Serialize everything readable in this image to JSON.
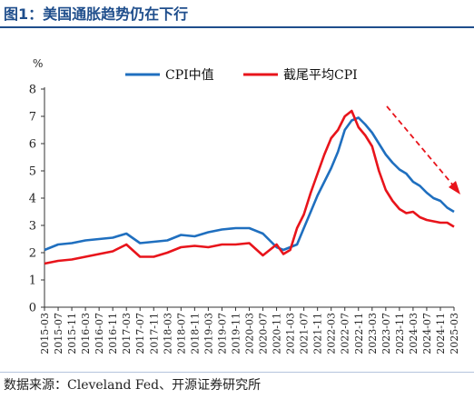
{
  "title": "图1：美国通胀趋势仍在下行",
  "source": "数据来源：Cleveland Fed、开源证券研究所",
  "colors": {
    "title": "#1f4e8c",
    "cpi": "#1f6fbf",
    "trimmed": "#e8141b",
    "arrow": "#e8141b"
  },
  "chart_data": {
    "type": "line",
    "ylabel": "%",
    "ylim": [
      0,
      8
    ],
    "yticks": [
      0,
      1,
      2,
      3,
      4,
      5,
      6,
      7,
      8
    ],
    "xlim": [
      "2015-03",
      "2025-03"
    ],
    "xticks": [
      "2015-03",
      "2015-07",
      "2015-11",
      "2016-03",
      "2016-07",
      "2016-11",
      "2017-03",
      "2017-07",
      "2017-11",
      "2018-03",
      "2018-07",
      "2018-11",
      "2019-03",
      "2019-07",
      "2019-11",
      "2020-03",
      "2020-07",
      "2020-11",
      "2021-03",
      "2021-07",
      "2021-11",
      "2022-03",
      "2022-07",
      "2022-11",
      "2023-03",
      "2023-07",
      "2023-11",
      "2024-03",
      "2024-07",
      "2024-11",
      "2025-03"
    ],
    "grid": false,
    "legend": "top-center",
    "annotation": "downward-trend-arrow",
    "series": [
      {
        "name": "CPI中值",
        "x": [
          "2015-03",
          "2015-07",
          "2015-11",
          "2016-03",
          "2016-07",
          "2016-11",
          "2017-03",
          "2017-07",
          "2017-11",
          "2018-03",
          "2018-07",
          "2018-11",
          "2019-03",
          "2019-07",
          "2019-11",
          "2020-03",
          "2020-07",
          "2020-11",
          "2021-01",
          "2021-03",
          "2021-05",
          "2021-07",
          "2021-09",
          "2021-11",
          "2022-01",
          "2022-03",
          "2022-05",
          "2022-07",
          "2022-09",
          "2022-11",
          "2023-01",
          "2023-03",
          "2023-05",
          "2023-07",
          "2023-09",
          "2023-11",
          "2024-01",
          "2024-03",
          "2024-05",
          "2024-07",
          "2024-09",
          "2024-11",
          "2025-01",
          "2025-03"
        ],
        "y": [
          2.1,
          2.3,
          2.35,
          2.45,
          2.5,
          2.55,
          2.7,
          2.35,
          2.4,
          2.45,
          2.65,
          2.6,
          2.75,
          2.85,
          2.9,
          2.9,
          2.7,
          2.2,
          2.1,
          2.2,
          2.3,
          2.9,
          3.5,
          4.1,
          4.6,
          5.1,
          5.7,
          6.5,
          6.85,
          6.95,
          6.7,
          6.4,
          6.0,
          5.6,
          5.3,
          5.05,
          4.9,
          4.6,
          4.45,
          4.2,
          4.0,
          3.9,
          3.65,
          3.5
        ]
      },
      {
        "name": "截尾平均CPI",
        "x": [
          "2015-03",
          "2015-07",
          "2015-11",
          "2016-03",
          "2016-07",
          "2016-11",
          "2017-03",
          "2017-07",
          "2017-11",
          "2018-03",
          "2018-07",
          "2018-11",
          "2019-03",
          "2019-07",
          "2019-11",
          "2020-03",
          "2020-07",
          "2020-11",
          "2021-01",
          "2021-03",
          "2021-05",
          "2021-07",
          "2021-09",
          "2021-11",
          "2022-01",
          "2022-03",
          "2022-05",
          "2022-07",
          "2022-09",
          "2022-11",
          "2023-01",
          "2023-03",
          "2023-05",
          "2023-07",
          "2023-09",
          "2023-11",
          "2024-01",
          "2024-03",
          "2024-05",
          "2024-07",
          "2024-09",
          "2024-11",
          "2025-01",
          "2025-03"
        ],
        "y": [
          1.6,
          1.7,
          1.75,
          1.85,
          1.95,
          2.05,
          2.3,
          1.85,
          1.85,
          2.0,
          2.2,
          2.25,
          2.2,
          2.3,
          2.3,
          2.35,
          1.9,
          2.3,
          1.95,
          2.1,
          2.9,
          3.4,
          4.2,
          4.9,
          5.6,
          6.2,
          6.5,
          7.0,
          7.2,
          6.6,
          6.3,
          5.9,
          5.0,
          4.3,
          3.9,
          3.6,
          3.45,
          3.5,
          3.3,
          3.2,
          3.15,
          3.1,
          3.1,
          2.95
        ]
      }
    ]
  }
}
